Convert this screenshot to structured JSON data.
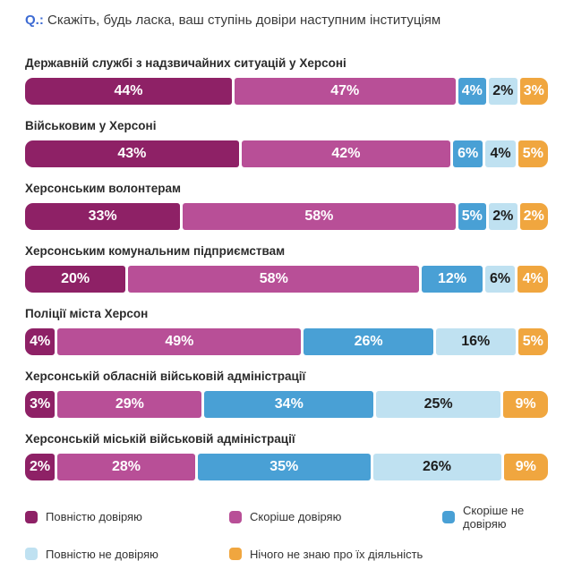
{
  "title": {
    "prefix": "Q.:",
    "text": "Скажіть, будь ласка, ваш ступінь довіри наступним інституціям",
    "prefix_color": "#3d6bd3"
  },
  "chart_data": {
    "type": "bar",
    "orientation": "horizontal",
    "stacked": true,
    "unit": "%",
    "xlim": [
      0,
      100
    ],
    "grid": false,
    "legend_position": "bottom",
    "categories": [
      "Державній службі з надзвичайних ситуацій у Херсоні",
      "Військовим у Херсоні",
      "Херсонським волонтерам",
      "Херсонським комунальним підприємствам",
      "Поліції міста Херсон",
      "Херсонській обласній військовій адміністрації",
      "Херсонській міській військовій адміністрації"
    ],
    "series": [
      {
        "name": "Повністю довіряю",
        "color": "#8E2166",
        "text_color": "#ffffff",
        "values": [
          44,
          43,
          33,
          20,
          4,
          3,
          2
        ]
      },
      {
        "name": "Скоріше довіряю",
        "color": "#B84F97",
        "text_color": "#ffffff",
        "values": [
          47,
          42,
          58,
          58,
          49,
          29,
          28
        ]
      },
      {
        "name": "Скоріше не довіряю",
        "color": "#49A0D5",
        "text_color": "#ffffff",
        "values": [
          4,
          6,
          5,
          12,
          26,
          34,
          35
        ]
      },
      {
        "name": "Повністю не довіряю",
        "color": "#BFE1F1",
        "text_color": "#1d1d1d",
        "values": [
          2,
          4,
          2,
          6,
          16,
          25,
          26
        ]
      },
      {
        "name": "Нічого не знаю про їх діяльність",
        "color": "#F0A63F",
        "text_color": "#ffffff",
        "values": [
          3,
          5,
          2,
          4,
          5,
          9,
          9
        ]
      }
    ]
  }
}
